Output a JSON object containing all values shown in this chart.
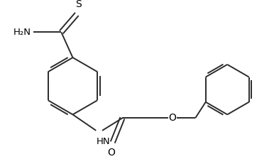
{
  "bg_color": "#ffffff",
  "line_color": "#2b2b2b",
  "text_color": "#000000",
  "lw": 1.4,
  "figsize": [
    3.86,
    2.24
  ],
  "dpi": 100,
  "xlim": [
    0,
    7.8
  ],
  "ylim": [
    0,
    4.4
  ]
}
